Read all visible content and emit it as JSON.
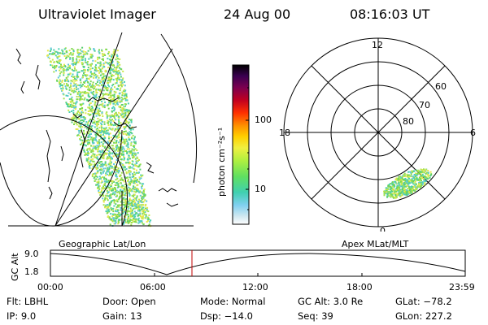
{
  "header": {
    "instrument": "Ultraviolet Imager",
    "date": "24 Aug 00",
    "time": "08:16:03 UT"
  },
  "left_panel": {
    "label": "Geographic Lat/Lon"
  },
  "right_panel": {
    "label": "Apex MLat/MLT",
    "mlt_labels": {
      "top": "12",
      "left": "18",
      "right": "6",
      "bottom": "0"
    },
    "lat_labels": [
      "60",
      "70",
      "80"
    ]
  },
  "colorbar": {
    "label": "photon cm⁻²s⁻¹",
    "ticks": [
      "100",
      "10"
    ],
    "colors": [
      "#000000",
      "#2a0040",
      "#5a0060",
      "#8b0020",
      "#c00000",
      "#ff2000",
      "#ff8000",
      "#ffc000",
      "#ffff40",
      "#c0f040",
      "#80f040",
      "#40e060",
      "#40d0c0",
      "#80d0f0",
      "#c0e0f0",
      "#ffffff"
    ]
  },
  "altitude_plot": {
    "y_label": "GC Alt",
    "y_ticks": [
      "9.0",
      "1.8"
    ],
    "x_ticks": [
      "00:00",
      "06:00",
      "12:00",
      "18:00",
      "23:59"
    ],
    "marker_time": "08:16",
    "marker_color": "#c00000"
  },
  "footer": {
    "flt": "Flt: LBHL",
    "ip": "IP:  9.0",
    "door": "Door: Open",
    "gain": "Gain: 13",
    "mode": "Mode: Normal",
    "dsp": "Dsp:  −14.0",
    "gc_alt": "GC Alt: 3.0 Re",
    "seq": "Seq: 39",
    "glat": "GLat: −78.2",
    "glon": "GLon: 227.2"
  },
  "colors": {
    "aurora_green": "#7ad84a",
    "aurora_yellow": "#e6e84a",
    "aurora_cyan": "#4ad0b0"
  }
}
